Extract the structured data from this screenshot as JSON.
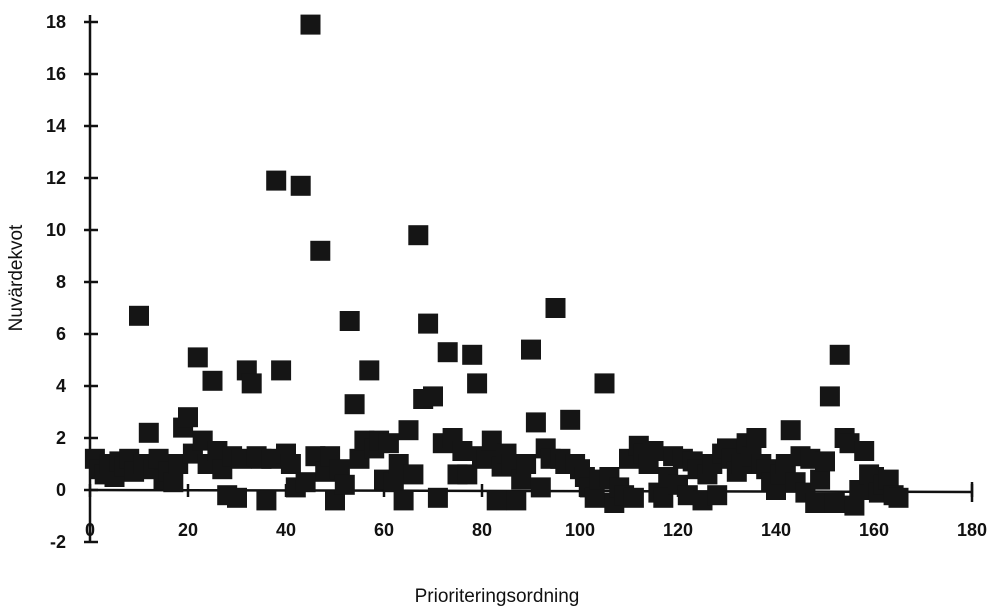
{
  "chart_data": {
    "type": "scatter",
    "xlabel": "Prioriteringsordning",
    "ylabel": "Nuvärdekvot",
    "xlim": [
      0,
      180
    ],
    "ylim": [
      -2,
      18
    ],
    "x_ticks": [
      "0",
      "20",
      "40",
      "60",
      "80",
      "100",
      "120",
      "140",
      "160",
      "180"
    ],
    "y_ticks": [
      "-2",
      "0",
      "2",
      "4",
      "6",
      "8",
      "10",
      "12",
      "14",
      "16",
      "18"
    ],
    "grid": false,
    "legend": "none",
    "marker": "filled-square",
    "marker_color": "#151515",
    "points": [
      {
        "x": 1,
        "y": 1.2
      },
      {
        "x": 2,
        "y": 0.8
      },
      {
        "x": 3,
        "y": 0.6
      },
      {
        "x": 4,
        "y": 1.0
      },
      {
        "x": 5,
        "y": 0.5
      },
      {
        "x": 6,
        "y": 1.1
      },
      {
        "x": 7,
        "y": 0.9
      },
      {
        "x": 8,
        "y": 1.2
      },
      {
        "x": 9,
        "y": 0.7
      },
      {
        "x": 10,
        "y": 6.7
      },
      {
        "x": 11,
        "y": 1.0
      },
      {
        "x": 12,
        "y": 2.2
      },
      {
        "x": 13,
        "y": 0.8
      },
      {
        "x": 14,
        "y": 1.2
      },
      {
        "x": 15,
        "y": 0.4
      },
      {
        "x": 16,
        "y": 0.7
      },
      {
        "x": 17,
        "y": 0.3
      },
      {
        "x": 18,
        "y": 1.0
      },
      {
        "x": 19,
        "y": 2.4
      },
      {
        "x": 20,
        "y": 2.8
      },
      {
        "x": 21,
        "y": 1.4
      },
      {
        "x": 22,
        "y": 5.1
      },
      {
        "x": 23,
        "y": 1.9
      },
      {
        "x": 24,
        "y": 1.0
      },
      {
        "x": 25,
        "y": 4.2
      },
      {
        "x": 26,
        "y": 1.5
      },
      {
        "x": 27,
        "y": 0.8
      },
      {
        "x": 28,
        "y": -0.2
      },
      {
        "x": 29,
        "y": 1.3
      },
      {
        "x": 30,
        "y": -0.3
      },
      {
        "x": 31,
        "y": 1.2
      },
      {
        "x": 32,
        "y": 4.6
      },
      {
        "x": 33,
        "y": 4.1
      },
      {
        "x": 34,
        "y": 1.3
      },
      {
        "x": 35,
        "y": 1.2
      },
      {
        "x": 36,
        "y": -0.4
      },
      {
        "x": 37,
        "y": 1.2
      },
      {
        "x": 38,
        "y": 11.9
      },
      {
        "x": 39,
        "y": 4.6
      },
      {
        "x": 40,
        "y": 1.4
      },
      {
        "x": 41,
        "y": 1.0
      },
      {
        "x": 42,
        "y": 0.1
      },
      {
        "x": 43,
        "y": 11.7
      },
      {
        "x": 44,
        "y": 0.3
      },
      {
        "x": 45,
        "y": 17.9
      },
      {
        "x": 46,
        "y": 1.3
      },
      {
        "x": 47,
        "y": 9.2
      },
      {
        "x": 48,
        "y": 0.7
      },
      {
        "x": 49,
        "y": 1.3
      },
      {
        "x": 50,
        "y": -0.4
      },
      {
        "x": 51,
        "y": 0.8
      },
      {
        "x": 52,
        "y": 0.2
      },
      {
        "x": 53,
        "y": 6.5
      },
      {
        "x": 54,
        "y": 3.3
      },
      {
        "x": 55,
        "y": 1.2
      },
      {
        "x": 56,
        "y": 1.9
      },
      {
        "x": 57,
        "y": 4.6
      },
      {
        "x": 58,
        "y": 1.6
      },
      {
        "x": 59,
        "y": 1.9
      },
      {
        "x": 60,
        "y": 0.4
      },
      {
        "x": 61,
        "y": 1.8
      },
      {
        "x": 62,
        "y": 0.3
      },
      {
        "x": 63,
        "y": 1.0
      },
      {
        "x": 64,
        "y": -0.4
      },
      {
        "x": 65,
        "y": 2.3
      },
      {
        "x": 66,
        "y": 0.6
      },
      {
        "x": 67,
        "y": 9.8
      },
      {
        "x": 68,
        "y": 3.5
      },
      {
        "x": 69,
        "y": 6.4
      },
      {
        "x": 70,
        "y": 3.6
      },
      {
        "x": 71,
        "y": -0.3
      },
      {
        "x": 72,
        "y": 1.8
      },
      {
        "x": 73,
        "y": 5.3
      },
      {
        "x": 74,
        "y": 2.0
      },
      {
        "x": 75,
        "y": 0.6
      },
      {
        "x": 76,
        "y": 1.5
      },
      {
        "x": 77,
        "y": 0.6
      },
      {
        "x": 78,
        "y": 5.2
      },
      {
        "x": 79,
        "y": 4.1
      },
      {
        "x": 80,
        "y": 1.3
      },
      {
        "x": 81,
        "y": 1.2
      },
      {
        "x": 82,
        "y": 1.9
      },
      {
        "x": 83,
        "y": -0.4
      },
      {
        "x": 84,
        "y": 0.9
      },
      {
        "x": 85,
        "y": 1.4
      },
      {
        "x": 86,
        "y": 1.0
      },
      {
        "x": 87,
        "y": -0.4
      },
      {
        "x": 88,
        "y": 0.4
      },
      {
        "x": 89,
        "y": 1.0
      },
      {
        "x": 90,
        "y": 5.4
      },
      {
        "x": 91,
        "y": 2.6
      },
      {
        "x": 92,
        "y": 0.1
      },
      {
        "x": 93,
        "y": 1.6
      },
      {
        "x": 94,
        "y": 1.2
      },
      {
        "x": 95,
        "y": 7.0
      },
      {
        "x": 96,
        "y": 1.2
      },
      {
        "x": 97,
        "y": 1.0
      },
      {
        "x": 98,
        "y": 2.7
      },
      {
        "x": 99,
        "y": 1.0
      },
      {
        "x": 100,
        "y": 0.8
      },
      {
        "x": 101,
        "y": 0.5
      },
      {
        "x": 102,
        "y": 0.1
      },
      {
        "x": 103,
        "y": -0.3
      },
      {
        "x": 104,
        "y": 0.4
      },
      {
        "x": 105,
        "y": 4.1
      },
      {
        "x": 106,
        "y": 0.5
      },
      {
        "x": 107,
        "y": -0.5
      },
      {
        "x": 108,
        "y": 0.1
      },
      {
        "x": 109,
        "y": -0.2
      },
      {
        "x": 110,
        "y": 1.2
      },
      {
        "x": 111,
        "y": -0.3
      },
      {
        "x": 112,
        "y": 1.7
      },
      {
        "x": 113,
        "y": 1.4
      },
      {
        "x": 114,
        "y": 1.0
      },
      {
        "x": 115,
        "y": 1.5
      },
      {
        "x": 116,
        "y": -0.1
      },
      {
        "x": 117,
        "y": -0.3
      },
      {
        "x": 118,
        "y": 0.5
      },
      {
        "x": 119,
        "y": 1.3
      },
      {
        "x": 120,
        "y": 0.2
      },
      {
        "x": 121,
        "y": 1.2
      },
      {
        "x": 122,
        "y": -0.2
      },
      {
        "x": 123,
        "y": 1.1
      },
      {
        "x": 124,
        "y": 0.8
      },
      {
        "x": 125,
        "y": -0.4
      },
      {
        "x": 126,
        "y": 0.6
      },
      {
        "x": 127,
        "y": 1.0
      },
      {
        "x": 128,
        "y": -0.2
      },
      {
        "x": 129,
        "y": 1.4
      },
      {
        "x": 130,
        "y": 1.6
      },
      {
        "x": 131,
        "y": 1.2
      },
      {
        "x": 132,
        "y": 0.7
      },
      {
        "x": 133,
        "y": 1.0
      },
      {
        "x": 134,
        "y": 1.8
      },
      {
        "x": 135,
        "y": 1.3
      },
      {
        "x": 136,
        "y": 2.0
      },
      {
        "x": 137,
        "y": 1.0
      },
      {
        "x": 138,
        "y": 0.8
      },
      {
        "x": 139,
        "y": 0.3
      },
      {
        "x": 140,
        "y": 0.0
      },
      {
        "x": 141,
        "y": 0.6
      },
      {
        "x": 142,
        "y": 1.0
      },
      {
        "x": 143,
        "y": 2.3
      },
      {
        "x": 144,
        "y": 0.3
      },
      {
        "x": 145,
        "y": 1.3
      },
      {
        "x": 146,
        "y": -0.1
      },
      {
        "x": 147,
        "y": 1.2
      },
      {
        "x": 148,
        "y": -0.5
      },
      {
        "x": 149,
        "y": 0.4
      },
      {
        "x": 150,
        "y": 1.1
      },
      {
        "x": 151,
        "y": 3.6
      },
      {
        "x": 152,
        "y": -0.5
      },
      {
        "x": 153,
        "y": 5.2
      },
      {
        "x": 154,
        "y": 2.0
      },
      {
        "x": 155,
        "y": 1.8
      },
      {
        "x": 156,
        "y": -0.6
      },
      {
        "x": 157,
        "y": 0.0
      },
      {
        "x": 158,
        "y": 1.5
      },
      {
        "x": 159,
        "y": 0.6
      },
      {
        "x": 160,
        "y": 0.5
      },
      {
        "x": 161,
        "y": -0.1
      },
      {
        "x": 162,
        "y": 0.2
      },
      {
        "x": 163,
        "y": 0.4
      },
      {
        "x": 164,
        "y": -0.2
      },
      {
        "x": 165,
        "y": -0.3
      }
    ]
  }
}
